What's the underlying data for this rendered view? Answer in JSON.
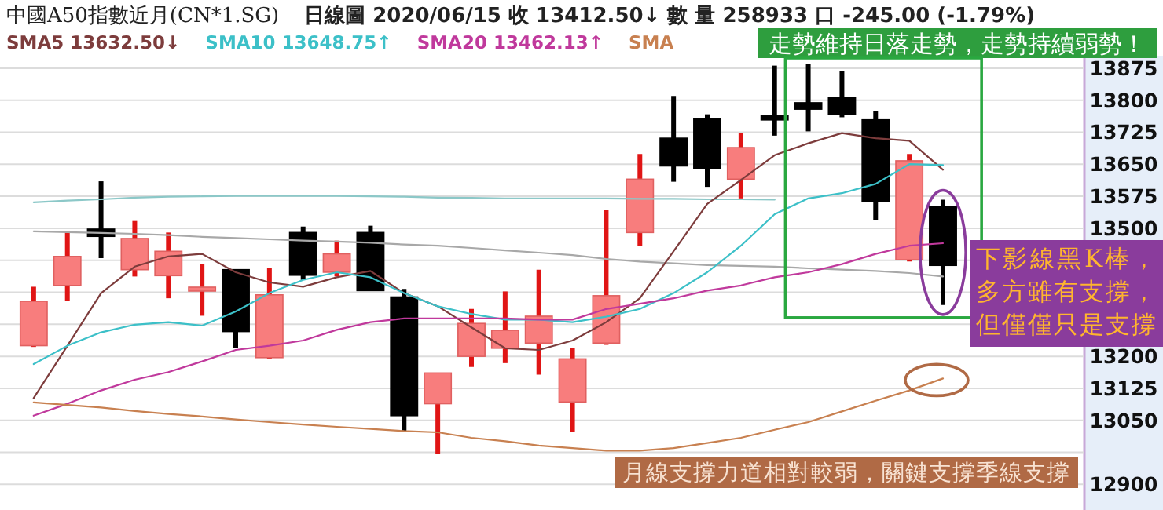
{
  "chart_data": {
    "type": "candlestick",
    "title": "中國A50指數近月(CN*1.SG)",
    "subtitle": "日線圖  2020/06/15  收 13412.50↓  數 量 258933 口  -245.00 (-1.79%)",
    "categories": [
      null,
      null,
      null,
      null,
      null,
      null,
      null,
      null,
      null,
      null,
      null,
      null,
      null,
      null,
      null,
      null,
      null,
      null,
      null,
      null,
      null,
      null,
      null,
      null,
      null,
      null,
      null,
      null
    ],
    "ohlc": [
      [
        13225,
        13363,
        13222,
        13329
      ],
      [
        13366,
        13492,
        13329,
        13434
      ],
      [
        13498,
        13610,
        13430,
        13481
      ],
      [
        13403,
        13517,
        13387,
        13476
      ],
      [
        13389,
        13490,
        13336,
        13446
      ],
      [
        13356,
        13416,
        13295,
        13362
      ],
      [
        13403,
        13403,
        13219,
        13258
      ],
      [
        13197,
        13407,
        13194,
        13344
      ],
      [
        13490,
        13504,
        13379,
        13390
      ],
      [
        13397,
        13471,
        13387,
        13440
      ],
      [
        13490,
        13506,
        13354,
        13354
      ],
      [
        13339,
        13358,
        13022,
        13061
      ],
      [
        13089,
        13161,
        12972,
        13161
      ],
      [
        13200,
        13311,
        13175,
        13277
      ],
      [
        13219,
        13352,
        13184,
        13261
      ],
      [
        13231,
        13403,
        13157,
        13294
      ],
      [
        13093,
        13219,
        13022,
        13194
      ],
      [
        13231,
        13542,
        13227,
        13342
      ],
      [
        13490,
        13674,
        13459,
        13615
      ],
      [
        13711,
        13810,
        13609,
        13646
      ],
      [
        13757,
        13767,
        13597,
        13640
      ],
      [
        13615,
        13723,
        13570,
        13689
      ],
      [
        13763,
        13881,
        13717,
        13754
      ],
      [
        13794,
        13884,
        13727,
        13779
      ],
      [
        13807,
        13868,
        13760,
        13767
      ],
      [
        13754,
        13775,
        13518,
        13563
      ],
      [
        13426,
        13674,
        13422,
        13658
      ],
      [
        13550,
        13567,
        13320,
        13413
      ]
    ],
    "series": [
      {
        "type": "line",
        "color": "#8cc8c8",
        "values": [
          13561,
          13565,
          13568,
          13572,
          13574,
          13575,
          13576,
          13576,
          13576,
          13576,
          13575,
          13574,
          13572,
          13571,
          13570,
          13570,
          13570,
          13570,
          13569,
          13569,
          13568,
          13568,
          13567,
          null,
          null,
          null,
          null,
          null
        ]
      },
      {
        "type": "line",
        "color": "#a8a8a8",
        "values": [
          13493,
          13491,
          13489,
          13487,
          13484,
          13480,
          13477,
          13474,
          13471,
          13469,
          13466,
          13462,
          13459,
          13454,
          13448,
          13443,
          13437,
          13428,
          13422,
          13418,
          13414,
          13412,
          13410,
          13406,
          13403,
          13400,
          13395,
          13387
        ]
      },
      {
        "type": "line",
        "name": "SMA5 13632.50↓",
        "color": "#7d3c3c",
        "values": [
          13102,
          13225,
          13348,
          13410,
          13434,
          13440,
          13397,
          13373,
          13363,
          13385,
          13400,
          13348,
          13317,
          13268,
          13219,
          13215,
          13237,
          13280,
          13336,
          13446,
          13557,
          13613,
          13671,
          13699,
          13723,
          13711,
          13705,
          13637
        ]
      },
      {
        "type": "line",
        "name": "SMA10 13648.75↑",
        "color": "#3cc0c8",
        "values": [
          13182,
          13225,
          13256,
          13274,
          13280,
          13272,
          13305,
          13348,
          13379,
          13397,
          13385,
          13348,
          13317,
          13299,
          13286,
          13286,
          13280,
          13293,
          13311,
          13348,
          13397,
          13459,
          13533,
          13570,
          13582,
          13604,
          13650,
          13648
        ]
      },
      {
        "type": "line",
        "name": "SMA20 13462.13↑",
        "color": "#c0399c",
        "values": [
          13061,
          13089,
          13120,
          13145,
          13163,
          13188,
          13215,
          13225,
          13237,
          13262,
          13280,
          13289,
          13289,
          13289,
          13289,
          13286,
          13286,
          13311,
          13323,
          13336,
          13354,
          13366,
          13385,
          13397,
          13416,
          13440,
          13459,
          13465
        ]
      },
      {
        "type": "line",
        "name": "SMA",
        "color": "#c88050",
        "values": [
          13092,
          13086,
          13080,
          13072,
          13065,
          13059,
          13052,
          13046,
          13040,
          13035,
          13030,
          13025,
          13022,
          13009,
          13001,
          12991,
          12985,
          12979,
          12979,
          12985,
          12997,
          13009,
          13028,
          13046,
          13071,
          13096,
          13120,
          13148
        ]
      }
    ],
    "ylim": [
      12840,
      13895
    ],
    "yticks": [
      13875,
      13800,
      13725,
      13650,
      13575,
      13500,
      {
        "value": 13425,
        "label": null
      },
      {
        "value": 13350,
        "label": null
      },
      {
        "value": 13275,
        "label": null
      },
      13200,
      13125,
      13050,
      {
        "value": 12975,
        "label": null
      },
      12900
    ],
    "grid": "y",
    "legend": "top left",
    "tick_labels": "y",
    "annotations": [
      "走勢維持日落走勢，走勢持續弱勢！",
      "下影線黑K棒，多方雖有支撐，但僅僅只是支撐",
      "月線支撐力道相對較弱，關鍵支撐季線支撐"
    ]
  }
}
